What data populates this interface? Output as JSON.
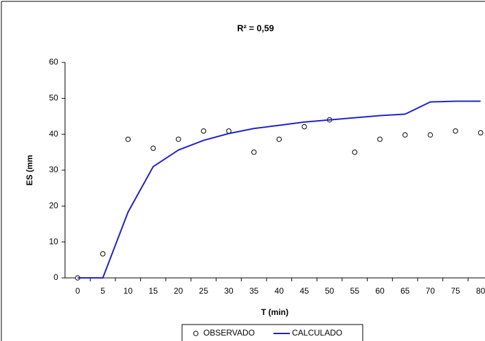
{
  "chart_data": {
    "type": "line",
    "title": "R² = 0,59",
    "xlabel": "T (min)",
    "ylabel": "ES (mm",
    "x": [
      0,
      5,
      10,
      15,
      20,
      25,
      30,
      35,
      40,
      45,
      50,
      55,
      60,
      65,
      70,
      75,
      80
    ],
    "xlim": [
      -2.5,
      82.5
    ],
    "xticks": [
      0,
      5,
      10,
      15,
      20,
      25,
      30,
      35,
      40,
      45,
      50,
      55,
      60,
      65,
      70,
      75,
      80
    ],
    "ylim": [
      0,
      60
    ],
    "yticks": [
      0,
      10,
      20,
      30,
      40,
      50,
      60
    ],
    "series": [
      {
        "name": "OBSERVADO",
        "mode": "markers",
        "color": "#000000",
        "values": [
          0,
          6.7,
          38.6,
          36.1,
          38.6,
          40.9,
          40.9,
          35,
          38.6,
          42.1,
          44,
          35,
          38.6,
          39.8,
          39.8,
          40.9,
          40.4
        ]
      },
      {
        "name": "CALCULADO",
        "mode": "line",
        "color": "#1f1fcc",
        "values": [
          0,
          0,
          18.3,
          31,
          35.6,
          38.3,
          40.2,
          41.6,
          42.5,
          43.4,
          44,
          44.6,
          45.2,
          45.6,
          49,
          49.2,
          49.2
        ]
      }
    ]
  }
}
